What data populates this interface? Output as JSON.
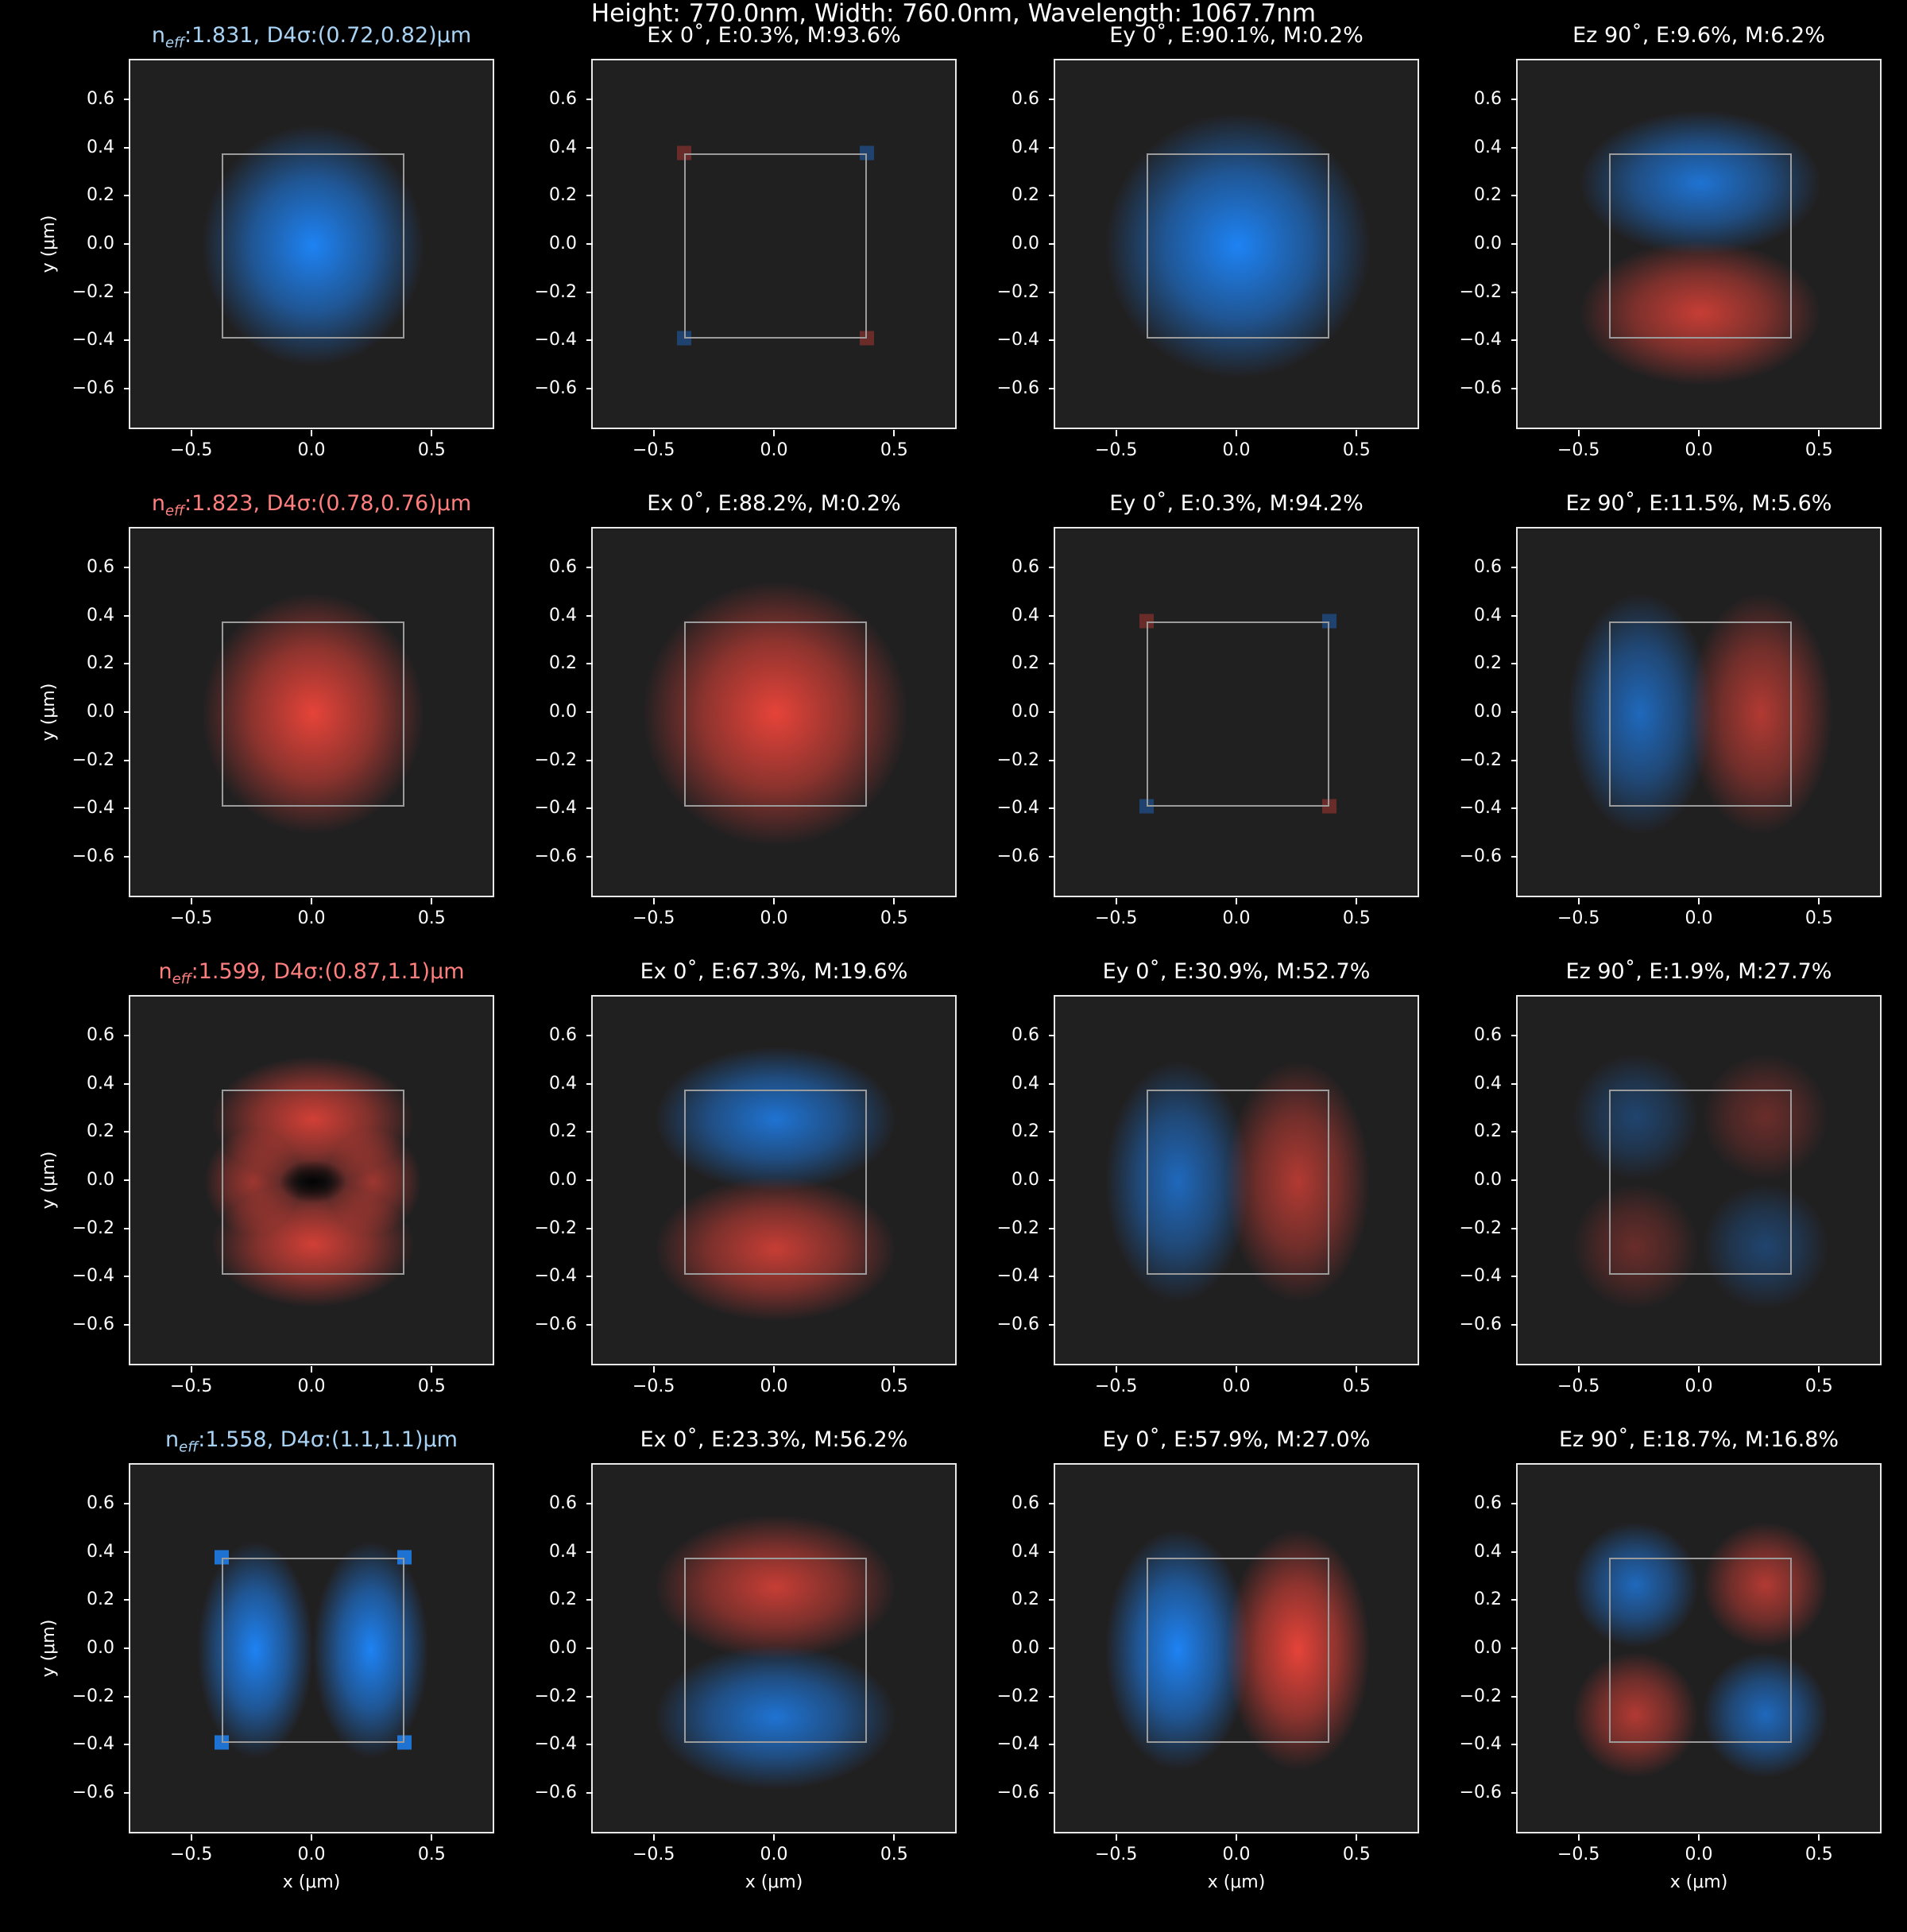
{
  "title": "Height: 770.0nm, Width: 760.0nm, Wavelength: 1067.7nm",
  "axes": {
    "xlabel": "x (μm)",
    "ylabel": "y (μm)",
    "xlim": [
      -0.76,
      0.76
    ],
    "ylim": [
      -0.77,
      0.77
    ],
    "xticks": [
      "−0.5",
      "0.0",
      "0.5"
    ],
    "xtick_values": [
      -0.5,
      0.0,
      0.5
    ],
    "yticks": [
      "0.6",
      "0.4",
      "0.2",
      "0.0",
      "−0.2",
      "−0.4",
      "−0.6"
    ],
    "ytick_values": [
      0.6,
      0.4,
      0.2,
      0.0,
      -0.2,
      -0.4,
      -0.6
    ]
  },
  "waveguide": {
    "width_um": 0.76,
    "height_um": 0.77
  },
  "colors": {
    "positive": "#f0453a",
    "negative": "#1e88ff",
    "background": "#212021",
    "frame": "#e8e8e8",
    "outline": "#9b9b9b"
  },
  "chart_data": {
    "type": "heatmap",
    "rows": [
      {
        "mode": {
          "label": "n",
          "sub": "eff",
          "rest": ":1.831, D4σ:(0.72,0.82)μm",
          "color": "#a9d3f5"
        },
        "panels": [
          {
            "title": "",
            "kind": "intensity",
            "sign": "neg"
          },
          {
            "title": "Ex 0˚, E:0.3%, M:93.6%",
            "kind": "corners4"
          },
          {
            "title": "Ey 0˚, E:90.1%, M:0.2%",
            "kind": "gauss",
            "sign": "neg"
          },
          {
            "title": "Ez 90˚, E:9.6%, M:6.2%",
            "kind": "dipole_y",
            "top": "neg",
            "bottom": "pos"
          }
        ]
      },
      {
        "mode": {
          "label": "n",
          "sub": "eff",
          "rest": ":1.823, D4σ:(0.78,0.76)μm",
          "color": "#ff7f7f"
        },
        "panels": [
          {
            "title": "",
            "kind": "intensity",
            "sign": "pos"
          },
          {
            "title": "Ex 0˚, E:88.2%, M:0.2%",
            "kind": "gauss",
            "sign": "pos"
          },
          {
            "title": "Ey 0˚, E:0.3%, M:94.2%",
            "kind": "corners4"
          },
          {
            "title": "Ez 90˚, E:11.5%, M:5.6%",
            "kind": "dipole_x",
            "left": "neg",
            "right": "pos"
          }
        ]
      },
      {
        "mode": {
          "label": "n",
          "sub": "eff",
          "rest": ":1.599, D4σ:(0.87,1.1)μm",
          "color": "#ff7f7f"
        },
        "panels": [
          {
            "title": "",
            "kind": "ring",
            "sign": "pos"
          },
          {
            "title": "Ex 0˚, E:67.3%, M:19.6%",
            "kind": "dipole_y",
            "top": "neg",
            "bottom": "pos"
          },
          {
            "title": "Ey 0˚, E:30.9%, M:52.7%",
            "kind": "dipole_x",
            "left": "neg",
            "right": "pos"
          },
          {
            "title": "Ez 90˚, E:1.9%, M:27.7%",
            "kind": "quad",
            "weak": true
          }
        ]
      },
      {
        "mode": {
          "label": "n",
          "sub": "eff",
          "rest": ":1.558, D4σ:(1.1,1.1)μm",
          "color": "#a9d3f5"
        },
        "panels": [
          {
            "title": "",
            "kind": "twolobe_x",
            "sign": "neg"
          },
          {
            "title": "Ex 0˚, E:23.3%, M:56.2%",
            "kind": "dipole_y",
            "top": "pos",
            "bottom": "neg"
          },
          {
            "title": "Ey 0˚, E:57.9%, M:27.0%",
            "kind": "dipole_x",
            "left": "neg",
            "right": "pos",
            "strong": true
          },
          {
            "title": "Ez 90˚, E:18.7%, M:16.8%",
            "kind": "quad"
          }
        ]
      }
    ]
  }
}
